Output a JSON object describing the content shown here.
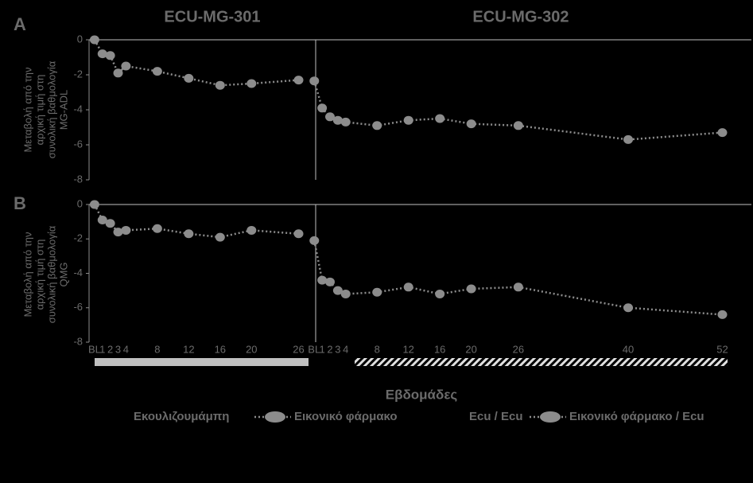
{
  "chart_data": [
    {
      "type": "line",
      "label": "A",
      "annotations": [
        "ECU-MG-301",
        "ECU-MG-302"
      ],
      "ylabel": [
        "Μεταβολή από την",
        "αρχική τιμή στη",
        "συνολική βαθμολογία",
        "MG-ADL"
      ],
      "xlim": [
        -0.7,
        83.7
      ],
      "ylim": [
        -8,
        0
      ],
      "yticks": [
        0,
        -2,
        -4,
        -6,
        -8
      ],
      "series": [
        {
          "color": "#8c8c8c",
          "marker": "circle",
          "x": [
            0,
            1,
            2,
            3,
            4,
            8,
            12,
            16,
            20,
            26
          ],
          "values": [
            0,
            -0.8,
            -0.9,
            -1.9,
            -1.5,
            -1.8,
            -2.2,
            -2.6,
            -2.5,
            -2.3
          ]
        },
        {
          "color": "#8c8c8c",
          "marker": "circle",
          "x": [
            28,
            29,
            30,
            31,
            32,
            36,
            40,
            44,
            48,
            54,
            68,
            80
          ],
          "values": [
            -2.35,
            -3.9,
            -4.4,
            -4.6,
            -4.7,
            -4.9,
            -4.6,
            -4.5,
            -4.8,
            -4.9,
            -5.7,
            -5.3
          ]
        }
      ]
    },
    {
      "type": "line",
      "label": "B",
      "xlabel": "Εβδομάδες",
      "ylabel": [
        "Μεταβολή από την",
        "αρχική τιμή στη",
        "συνολική βαθμολογία",
        "QMG"
      ],
      "xlim": [
        -0.7,
        83.7
      ],
      "ylim": [
        -8,
        0
      ],
      "yticks": [
        0,
        -2,
        -4,
        -6,
        -8
      ],
      "xticks": [
        {
          "value": 0,
          "label": "BL"
        },
        1,
        2,
        3,
        4,
        8,
        12,
        16,
        20,
        26,
        {
          "value": 28,
          "label": "BL"
        },
        {
          "value": 29,
          "label": "1"
        },
        {
          "value": 30,
          "label": "2"
        },
        {
          "value": 31,
          "label": "3"
        },
        {
          "value": 32,
          "label": "4"
        },
        {
          "value": 36,
          "label": "8"
        },
        {
          "value": 40,
          "label": "12"
        },
        {
          "value": 44,
          "label": "16"
        },
        {
          "value": 48,
          "label": "20"
        },
        {
          "value": 54,
          "label": "26"
        },
        {
          "value": 68,
          "label": "40"
        },
        {
          "value": 80,
          "label": "52"
        }
      ],
      "series": [
        {
          "name": "Εκουλιζουμάμπη",
          "color": "#000000",
          "marker": "none",
          "x": [],
          "values": []
        },
        {
          "name": "Εικονικό φάρμακο",
          "color": "#8c8c8c",
          "marker": "circle",
          "x": [
            0,
            1,
            2,
            3,
            4,
            8,
            12,
            16,
            20,
            26
          ],
          "values": [
            0,
            -0.9,
            -1.1,
            -1.6,
            -1.5,
            -1.4,
            -1.7,
            -1.9,
            -1.5,
            -1.7
          ]
        },
        {
          "name": "Ecu / Ecu",
          "color": "#000000",
          "marker": "none",
          "x": [],
          "values": []
        },
        {
          "name": "Εικονικό φάρμακο / Ecu",
          "color": "#8c8c8c",
          "marker": "circle",
          "x": [
            28,
            29,
            30,
            31,
            32,
            36,
            40,
            44,
            48,
            54,
            68,
            80
          ],
          "values": [
            -2.1,
            -4.4,
            -4.5,
            -5.0,
            -5.2,
            -5.1,
            -4.8,
            -5.2,
            -4.9,
            -4.8,
            -6.0,
            -6.4
          ]
        }
      ]
    }
  ]
}
